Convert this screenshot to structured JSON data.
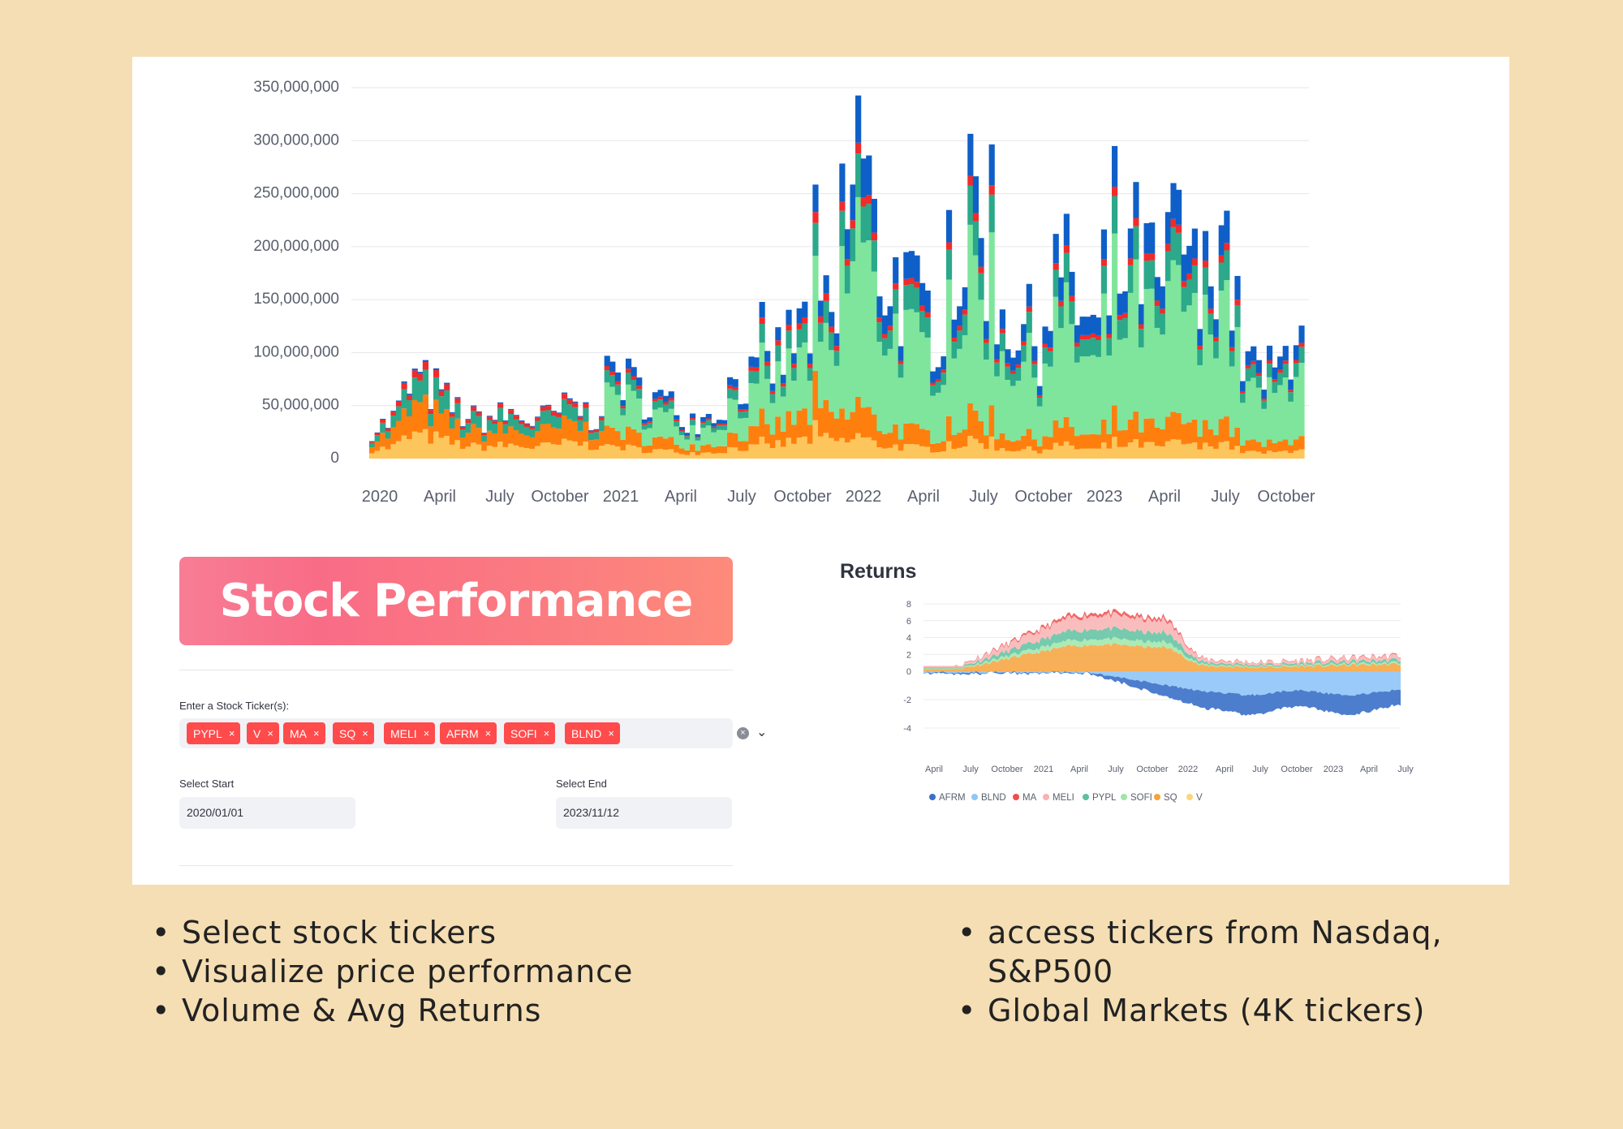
{
  "volume_chart": {
    "y_ticks": [
      "350,000,000",
      "300,000,000",
      "250,000,000",
      "200,000,000",
      "150,000,000",
      "100,000,000",
      "50,000,000",
      "0"
    ],
    "x_ticks": [
      "2020",
      "April",
      "July",
      "October",
      "2021",
      "April",
      "July",
      "October",
      "2022",
      "April",
      "July",
      "October",
      "2023",
      "April",
      "July",
      "October"
    ]
  },
  "chart_data": [
    {
      "type": "bar",
      "stacked": true,
      "ylim": [
        0,
        350000000
      ],
      "series_colors": {
        "SQ_low": "#fdc65c",
        "SQ": "#ff7f0e",
        "SOFI": "#7fe59d",
        "PYPL": "#2ca88a",
        "MA": "#ef2b2b",
        "AFRM": "#0f5fc8"
      },
      "x": [
        "2020-01",
        "2020-02",
        "2020-03",
        "2020-04",
        "2020-05",
        "2020-06",
        "2020-07",
        "2020-08",
        "2020-09",
        "2020-10",
        "2020-11",
        "2020-12",
        "2021-01",
        "2021-02",
        "2021-03",
        "2021-04",
        "2021-05",
        "2021-06",
        "2021-07",
        "2021-08",
        "2021-09",
        "2021-10",
        "2021-11",
        "2021-12",
        "2022-01",
        "2022-02",
        "2022-03",
        "2022-04",
        "2022-05",
        "2022-06",
        "2022-07",
        "2022-08",
        "2022-09",
        "2022-10",
        "2022-11",
        "2022-12",
        "2023-01",
        "2023-02",
        "2023-03",
        "2023-04",
        "2023-05",
        "2023-06",
        "2023-07",
        "2023-08",
        "2023-09",
        "2023-10",
        "2023-11"
      ],
      "total_values": [
        30000000,
        38000000,
        80000000,
        72000000,
        52000000,
        40000000,
        42000000,
        45000000,
        38000000,
        44000000,
        55000000,
        40000000,
        95000000,
        70000000,
        62000000,
        50000000,
        40000000,
        45000000,
        82000000,
        78000000,
        100000000,
        125000000,
        150000000,
        128000000,
        335000000,
        200000000,
        180000000,
        150000000,
        140000000,
        200000000,
        260000000,
        155000000,
        135000000,
        120000000,
        200000000,
        150000000,
        120000000,
        190000000,
        210000000,
        160000000,
        245000000,
        150000000,
        265000000,
        110000000,
        80000000,
        90000000,
        170000000
      ]
    },
    {
      "type": "area",
      "stacked": true,
      "title": "Returns",
      "ylim": [
        -4,
        8
      ],
      "y_ticks": [
        "8",
        "6",
        "4",
        "2",
        "0",
        "-2",
        "-4"
      ],
      "x_ticks": [
        "April",
        "July",
        "October",
        "2021",
        "April",
        "July",
        "October",
        "2022",
        "April",
        "July",
        "October",
        "2023",
        "April",
        "July",
        "October"
      ],
      "series": [
        {
          "name": "AFRM",
          "color": "#3a70c8"
        },
        {
          "name": "BLND",
          "color": "#8fc5f7"
        },
        {
          "name": "MA",
          "color": "#ef4e4e"
        },
        {
          "name": "MELI",
          "color": "#f9b1b1"
        },
        {
          "name": "PYPL",
          "color": "#5ec1a0"
        },
        {
          "name": "SOFI",
          "color": "#9ee6a8"
        },
        {
          "name": "SQ",
          "color": "#f7a23b"
        },
        {
          "name": "V",
          "color": "#f8d77a"
        }
      ]
    }
  ],
  "banner": {
    "title": "Stock Performance"
  },
  "ticker_select": {
    "label": "Enter a Stock Ticker(s):",
    "chips": [
      "PYPL",
      "V",
      "MA",
      "SQ",
      "MELI",
      "AFRM",
      "SOFI",
      "BLND"
    ],
    "remove_glyph": "×",
    "clear_glyph": "×",
    "dropdown_glyph": "⌄"
  },
  "date_range": {
    "start_label": "Select Start",
    "start_value": "2020/01/01",
    "end_label": "Select End",
    "end_value": "2023/11/12"
  },
  "bullets_left": [
    "Select stock tickers",
    "Visualize price performance",
    "Volume & Avg Returns"
  ],
  "bullets_right": [
    "access tickers from Nasdaq, S&P500",
    "Global Markets (4K tickers)"
  ]
}
